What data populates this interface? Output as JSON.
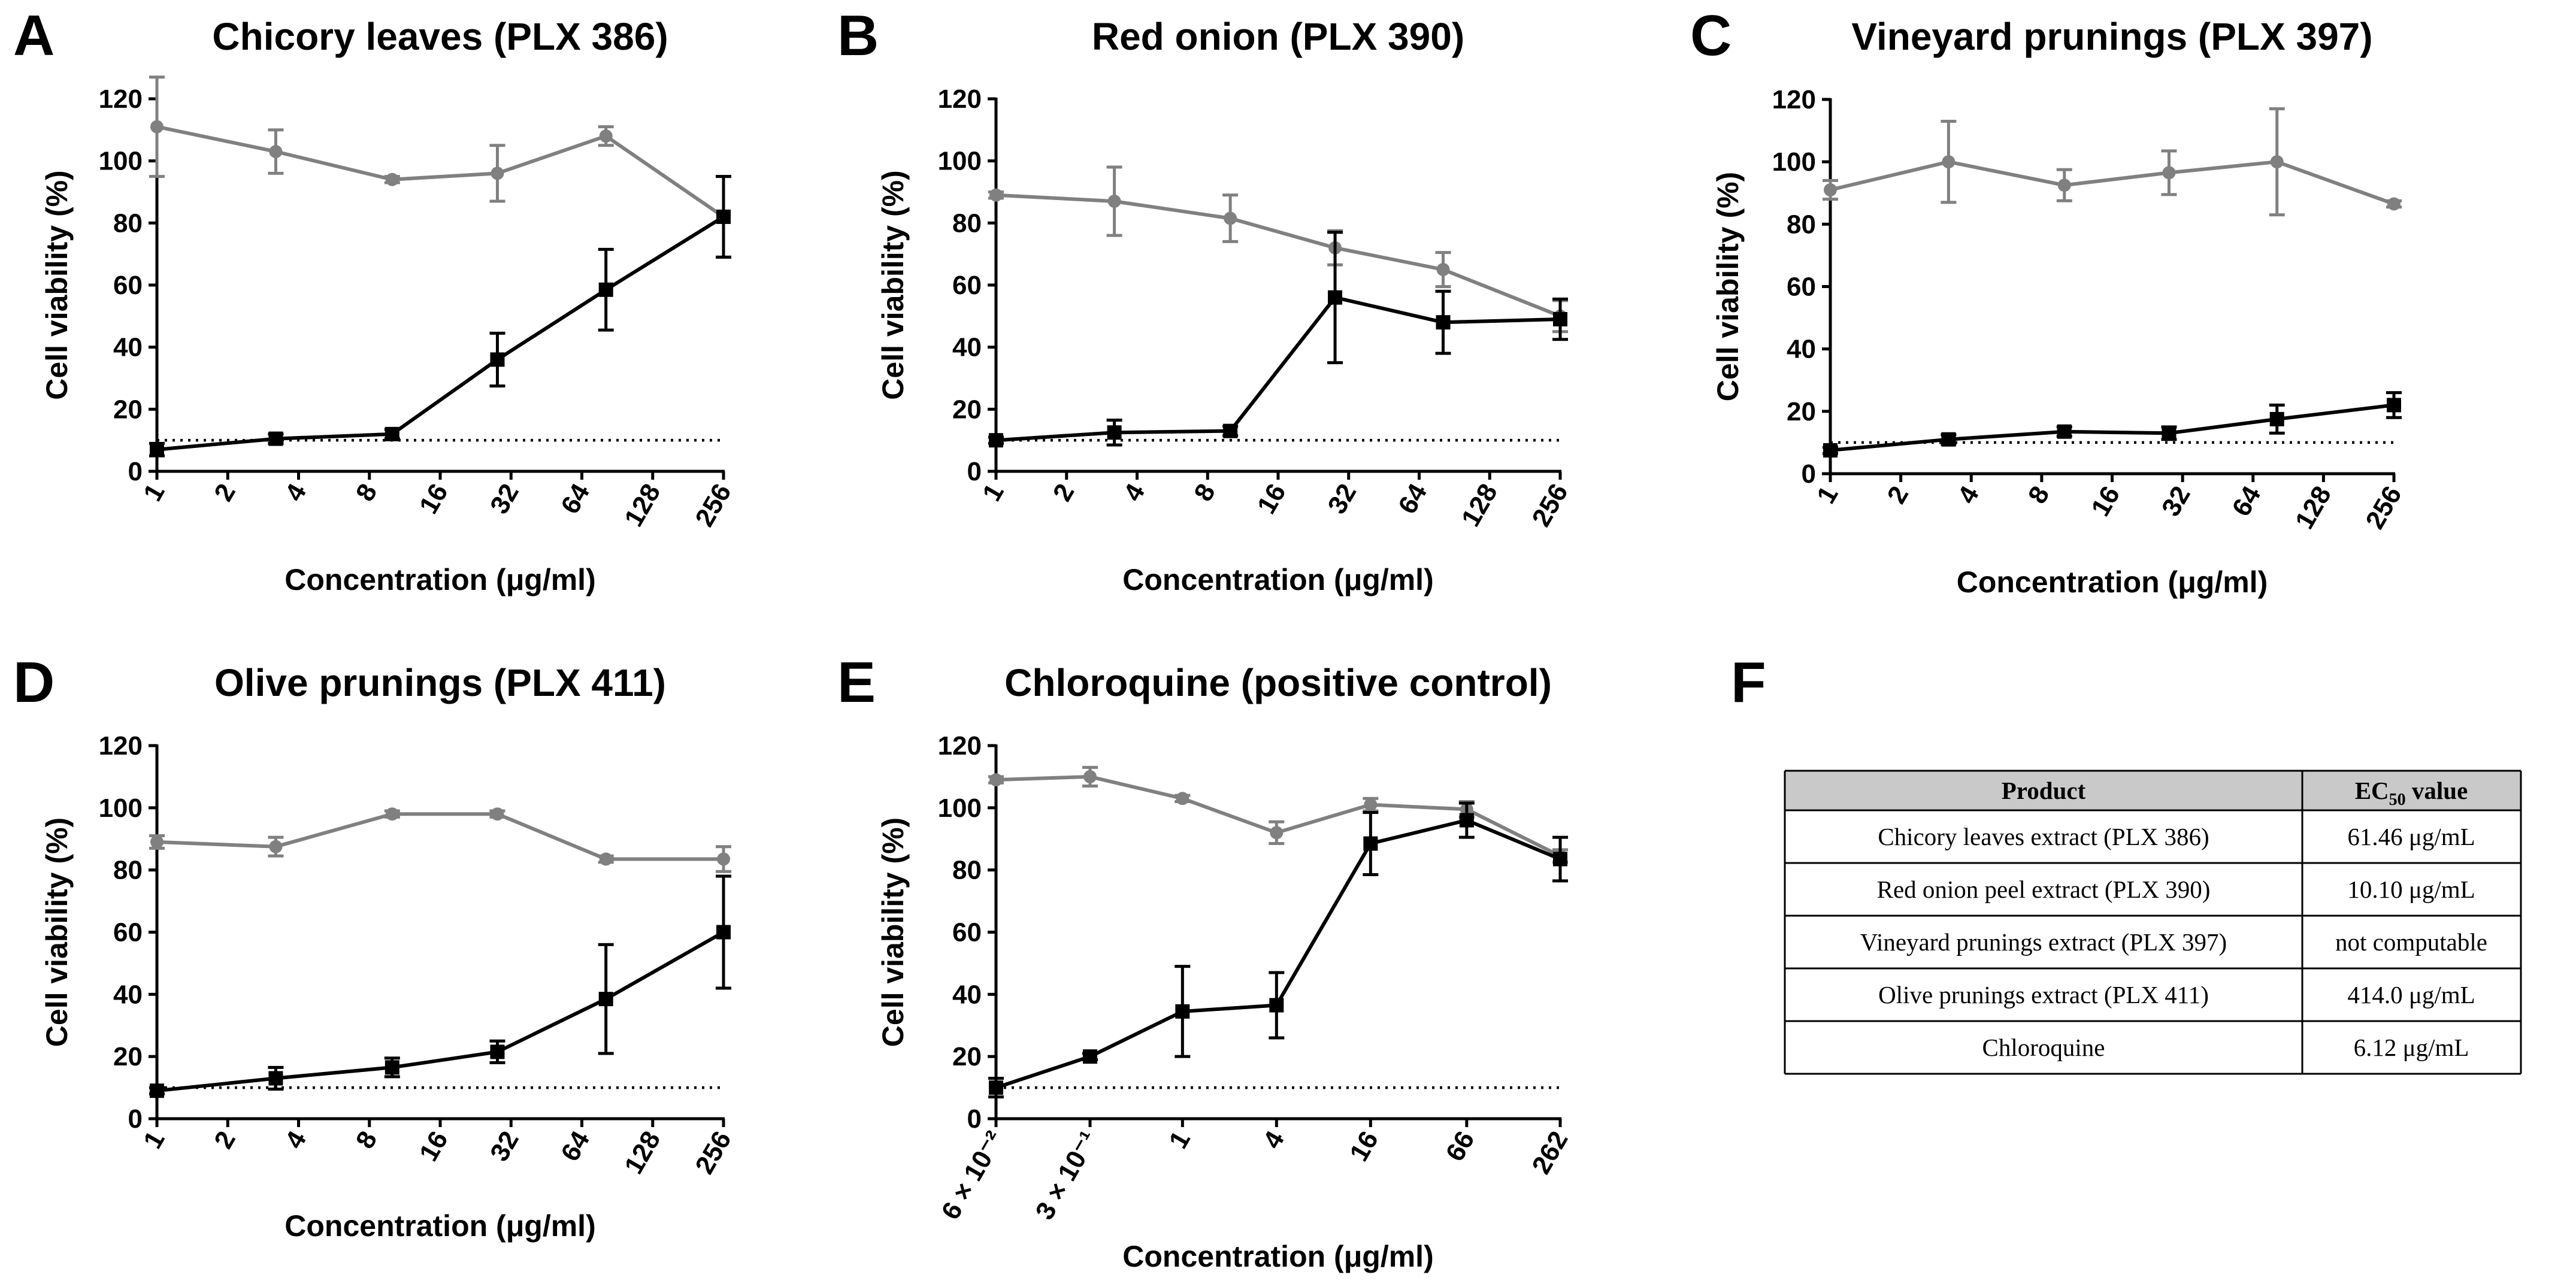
{
  "colors": {
    "cytotoxicity": "#000000",
    "viability_control": "#808080",
    "table_header_bg": "#c9c9c9"
  },
  "chart_data": [
    {
      "panel": "A",
      "type": "line",
      "title": "Chicory leaves (PLX 386)",
      "xlabel": "Concentration (μg/ml)",
      "ylabel": "Cell viability (%)",
      "xscale": "log2",
      "xlim": [
        1,
        256
      ],
      "ylim": [
        0,
        120
      ],
      "yticks": [
        "0",
        "20",
        "40",
        "60",
        "80",
        "100",
        "120"
      ],
      "xticks": [
        {
          "value": 1,
          "label": "1"
        },
        {
          "value": 2,
          "label": "2"
        },
        {
          "value": 4,
          "label": "4"
        },
        {
          "value": 8,
          "label": "8"
        },
        {
          "value": 16,
          "label": "16"
        },
        {
          "value": 32,
          "label": "32"
        },
        {
          "value": 64,
          "label": "64"
        },
        {
          "value": 128,
          "label": "128"
        },
        {
          "value": 256,
          "label": "256"
        }
      ],
      "threshold": 10,
      "series": [
        {
          "name": "gray-circle",
          "marker": "circle",
          "x": [
            1,
            3.2,
            10,
            28,
            81,
            256
          ],
          "values": [
            111,
            103,
            94,
            96,
            108,
            82
          ],
          "errors": [
            16,
            7,
            1,
            9,
            3,
            13
          ]
        },
        {
          "name": "black-square",
          "marker": "square",
          "x": [
            1,
            3.2,
            10,
            28,
            81,
            256
          ],
          "values": [
            7,
            10.5,
            12,
            36,
            58.5,
            82
          ],
          "errors": [
            2,
            1.5,
            1.5,
            8.5,
            13,
            13
          ]
        }
      ]
    },
    {
      "panel": "B",
      "type": "line",
      "title": "Red onion (PLX 390)",
      "xlabel": "Concentration (μg/ml)",
      "ylabel": "Cell viability (%)",
      "xscale": "log2",
      "xlim": [
        1,
        256
      ],
      "ylim": [
        0,
        120
      ],
      "yticks": [
        "0",
        "20",
        "40",
        "60",
        "80",
        "100",
        "120"
      ],
      "xticks": [
        {
          "value": 1,
          "label": "1"
        },
        {
          "value": 2,
          "label": "2"
        },
        {
          "value": 4,
          "label": "4"
        },
        {
          "value": 8,
          "label": "8"
        },
        {
          "value": 16,
          "label": "16"
        },
        {
          "value": 32,
          "label": "32"
        },
        {
          "value": 64,
          "label": "64"
        },
        {
          "value": 128,
          "label": "128"
        },
        {
          "value": 256,
          "label": "256"
        }
      ],
      "threshold": 10,
      "series": [
        {
          "name": "gray-circle",
          "marker": "circle",
          "x": [
            1,
            3.2,
            10,
            28,
            81,
            256
          ],
          "values": [
            89,
            87,
            81.5,
            72,
            65,
            50
          ],
          "errors": [
            1,
            11,
            7.5,
            5.5,
            5.5,
            5
          ]
        },
        {
          "name": "black-square",
          "marker": "square",
          "x": [
            1,
            3.2,
            10,
            28,
            81,
            256
          ],
          "values": [
            10,
            12.5,
            13,
            56,
            48,
            49
          ],
          "errors": [
            1,
            4,
            1.5,
            21,
            10,
            6.5
          ]
        }
      ]
    },
    {
      "panel": "C",
      "type": "line",
      "title": "Vineyard prunings (PLX 397)",
      "xlabel": "Concentration (μg/ml)",
      "ylabel": "Cell viability (%)",
      "xscale": "log2",
      "xlim": [
        1,
        256
      ],
      "ylim": [
        0,
        120
      ],
      "yticks": [
        "0",
        "20",
        "40",
        "60",
        "80",
        "100",
        "120"
      ],
      "xticks": [
        {
          "value": 1,
          "label": "1"
        },
        {
          "value": 2,
          "label": "2"
        },
        {
          "value": 4,
          "label": "4"
        },
        {
          "value": 8,
          "label": "8"
        },
        {
          "value": 16,
          "label": "16"
        },
        {
          "value": 32,
          "label": "32"
        },
        {
          "value": 64,
          "label": "64"
        },
        {
          "value": 128,
          "label": "128"
        },
        {
          "value": 256,
          "label": "256"
        }
      ],
      "threshold": 10,
      "series": [
        {
          "name": "gray-circle",
          "marker": "circle",
          "x": [
            1,
            3.2,
            10,
            28,
            81,
            256
          ],
          "values": [
            91,
            100,
            92.5,
            96.5,
            100,
            86.5
          ],
          "errors": [
            3,
            13,
            5,
            7,
            17,
            1
          ]
        },
        {
          "name": "black-square",
          "marker": "square",
          "x": [
            1,
            3.2,
            10,
            28,
            81,
            256
          ],
          "values": [
            7.5,
            11,
            13.5,
            13,
            17.5,
            22
          ],
          "errors": [
            1,
            1.5,
            1.5,
            2,
            4.5,
            4
          ]
        }
      ]
    },
    {
      "panel": "D",
      "type": "line",
      "title": "Olive prunings (PLX 411)",
      "xlabel": "Concentration (μg/ml)",
      "ylabel": "Cell viability (%)",
      "xscale": "log2",
      "xlim": [
        1,
        256
      ],
      "ylim": [
        0,
        120
      ],
      "yticks": [
        "0",
        "20",
        "40",
        "60",
        "80",
        "100",
        "120"
      ],
      "xticks": [
        {
          "value": 1,
          "label": "1"
        },
        {
          "value": 2,
          "label": "2"
        },
        {
          "value": 4,
          "label": "4"
        },
        {
          "value": 8,
          "label": "8"
        },
        {
          "value": 16,
          "label": "16"
        },
        {
          "value": 32,
          "label": "32"
        },
        {
          "value": 64,
          "label": "64"
        },
        {
          "value": 128,
          "label": "128"
        },
        {
          "value": 256,
          "label": "256"
        }
      ],
      "threshold": 10,
      "series": [
        {
          "name": "gray-circle",
          "marker": "circle",
          "x": [
            1,
            3.2,
            10,
            28,
            81,
            256
          ],
          "values": [
            89,
            87.5,
            98,
            98,
            83.5,
            83.5
          ],
          "errors": [
            2,
            3,
            1,
            1,
            1,
            4
          ]
        },
        {
          "name": "black-square",
          "marker": "square",
          "x": [
            1,
            3.2,
            10,
            28,
            81,
            256
          ],
          "values": [
            9,
            13,
            16.5,
            21.5,
            38.5,
            60
          ],
          "errors": [
            1,
            3.5,
            3,
            3.5,
            17.5,
            18
          ]
        }
      ]
    },
    {
      "panel": "E",
      "type": "line",
      "title": "Chloroquine (positive control)",
      "xlabel": "Concentration (μg/ml)",
      "ylabel": "Cell viability (%)",
      "xscale": "log4",
      "xlim": [
        0.064,
        262
      ],
      "ylim": [
        0,
        120
      ],
      "yticks": [
        "0",
        "20",
        "40",
        "60",
        "80",
        "100",
        "120"
      ],
      "xticks": [
        {
          "value": 0.064,
          "label": "6 × 10⁻²"
        },
        {
          "value": 0.256,
          "label": "3 × 10⁻¹"
        },
        {
          "value": 1,
          "label": "1"
        },
        {
          "value": 4,
          "label": "4"
        },
        {
          "value": 16,
          "label": "16"
        },
        {
          "value": 66,
          "label": "66"
        },
        {
          "value": 262,
          "label": "262"
        }
      ],
      "threshold": 10,
      "series": [
        {
          "name": "gray-circle",
          "marker": "circle",
          "x": [
            0.064,
            0.256,
            1,
            4,
            16,
            66,
            262
          ],
          "values": [
            109,
            110,
            103,
            92,
            101,
            99.5,
            84.5
          ],
          "errors": [
            1,
            3,
            1,
            3.5,
            2,
            2.5,
            2
          ]
        },
        {
          "name": "black-square",
          "marker": "square",
          "x": [
            0.064,
            0.256,
            1,
            4,
            16,
            66,
            262
          ],
          "values": [
            10,
            20,
            34.5,
            36.5,
            88.5,
            96,
            83.5
          ],
          "errors": [
            3,
            1,
            14.5,
            10.5,
            10,
            5.5,
            7
          ]
        }
      ]
    }
  ],
  "panel_f": {
    "label": "F",
    "header": {
      "product": "Product",
      "ec50_main": "EC",
      "ec50_sub": "50",
      "ec50_rest": " value"
    },
    "rows": [
      {
        "product": "Chicory leaves extract (PLX 386)",
        "value": "61.46 μg/mL"
      },
      {
        "product": "Red onion peel extract (PLX 390)",
        "value": "10.10 μg/mL"
      },
      {
        "product": "Vineyard prunings extract (PLX 397)",
        "value": "not computable"
      },
      {
        "product": "Olive prunings extract (PLX 411)",
        "value": "414.0 μg/mL"
      },
      {
        "product": "Chloroquine",
        "value": "6.12 μg/mL"
      }
    ]
  }
}
